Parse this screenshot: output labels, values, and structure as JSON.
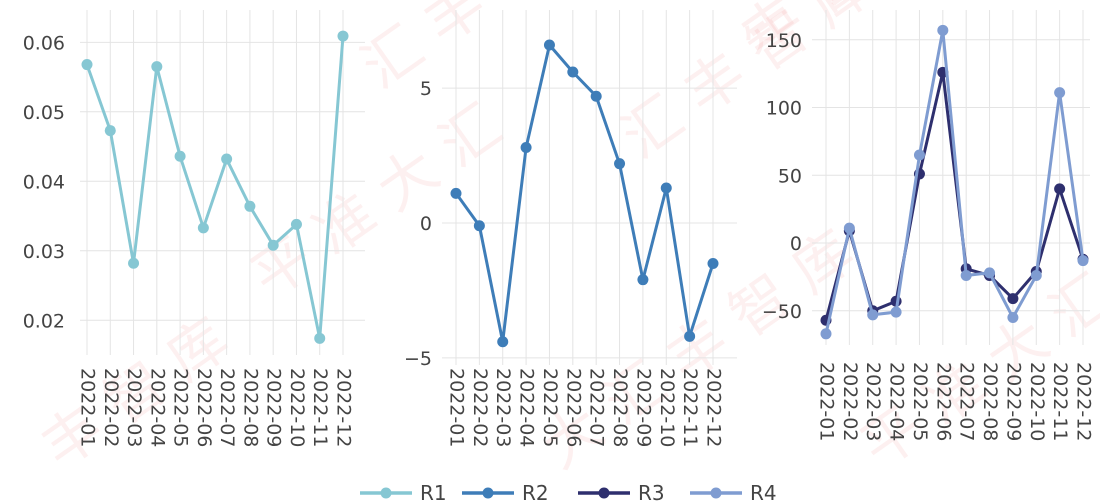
{
  "legend": {
    "position": "bottom-center",
    "items": [
      {
        "name": "R1",
        "color": "#86c7d3"
      },
      {
        "name": "R2",
        "color": "#3e7db8"
      },
      {
        "name": "R3",
        "color": "#2e2f6e"
      },
      {
        "name": "R4",
        "color": "#7f9cd1"
      }
    ]
  },
  "chart_data": [
    {
      "type": "line",
      "x": [
        "2022-01",
        "2022-02",
        "2022-03",
        "2022-04",
        "2022-05",
        "2022-06",
        "2022-07",
        "2022-08",
        "2022-09",
        "2022-10",
        "2022-11",
        "2022-12"
      ],
      "ylim": [
        0.015,
        0.0635
      ],
      "yticks": [
        0.02,
        0.03,
        0.04,
        0.05,
        0.06
      ],
      "ytick_labels": [
        "0.02",
        "0.03",
        "0.04",
        "0.05",
        "0.06"
      ],
      "grid": true,
      "series": [
        {
          "name": "R1",
          "color": "#86c7d3",
          "values": [
            0.0568,
            0.0473,
            0.0282,
            0.0565,
            0.0436,
            0.0333,
            0.0432,
            0.0364,
            0.0308,
            0.0338,
            0.0174,
            0.0609
          ]
        }
      ]
    },
    {
      "type": "line",
      "x": [
        "2022-01",
        "2022-02",
        "2022-03",
        "2022-04",
        "2022-05",
        "2022-06",
        "2022-07",
        "2022-08",
        "2022-09",
        "2022-10",
        "2022-11",
        "2022-12"
      ],
      "ylim": [
        -5.3,
        7.6
      ],
      "yticks": [
        -5,
        0,
        5
      ],
      "ytick_labels": [
        "−5",
        "0",
        "5"
      ],
      "grid": true,
      "series": [
        {
          "name": "R2",
          "color": "#3e7db8",
          "values": [
            1.1,
            -0.1,
            -4.4,
            2.8,
            6.6,
            5.6,
            4.7,
            2.2,
            -2.1,
            1.3,
            -4.2,
            -1.5
          ]
        }
      ]
    },
    {
      "type": "line",
      "x": [
        "2022-01",
        "2022-02",
        "2022-03",
        "2022-04",
        "2022-05",
        "2022-06",
        "2022-07",
        "2022-08",
        "2022-09",
        "2022-10",
        "2022-11",
        "2022-12"
      ],
      "ylim": [
        -76,
        172
      ],
      "yticks": [
        -50,
        0,
        50,
        100,
        150
      ],
      "ytick_labels": [
        "−50",
        "0",
        "50",
        "100",
        "150"
      ],
      "grid": true,
      "series": [
        {
          "name": "R3",
          "color": "#2e2f6e",
          "values": [
            -57,
            9,
            -50,
            -43,
            51,
            126,
            -19,
            -24,
            -41,
            -21,
            40,
            -12
          ]
        },
        {
          "name": "R4",
          "color": "#7f9cd1",
          "values": [
            -67,
            11,
            -53,
            -51,
            65,
            157,
            -24,
            -22,
            -55,
            -24,
            111,
            -13
          ]
        }
      ]
    }
  ]
}
